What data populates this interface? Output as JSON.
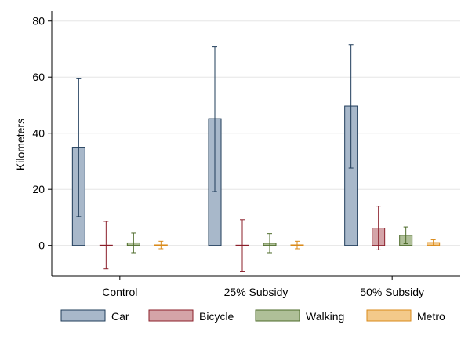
{
  "chart_data": {
    "type": "bar",
    "title": "",
    "xlabel": "",
    "ylabel": "Kilometers",
    "ylim": [
      -11,
      83
    ],
    "yticks": [
      0,
      20,
      40,
      60,
      80
    ],
    "grid": true,
    "legend_position": "bottom",
    "categories": [
      "Control",
      "25% Subsidy",
      "50% Subsidy"
    ],
    "series": [
      {
        "name": "Car",
        "fill": "#a8b8ca",
        "stroke": "#1f3c5a",
        "values": [
          35.0,
          45.2,
          49.7
        ],
        "err_low": [
          10.3,
          19.2,
          27.6
        ],
        "err_high": [
          59.4,
          70.8,
          71.6
        ]
      },
      {
        "name": "Bicycle",
        "fill": "#d4a4a8",
        "stroke": "#8b1f2a",
        "values": [
          0.1,
          0.1,
          6.2
        ],
        "err_low": [
          -8.4,
          -9.2,
          -1.6
        ],
        "err_high": [
          8.6,
          9.2,
          14.0
        ]
      },
      {
        "name": "Walking",
        "fill": "#afbf98",
        "stroke": "#4d6b2a",
        "values": [
          0.9,
          0.8,
          3.6
        ],
        "err_low": [
          -2.6,
          -2.6,
          0.6
        ],
        "err_high": [
          4.4,
          4.2,
          6.6
        ]
      },
      {
        "name": "Metro",
        "fill": "#f3c98a",
        "stroke": "#d98a1a",
        "values": [
          0.2,
          0.2,
          1.0
        ],
        "err_low": [
          -1.2,
          -1.2,
          0.0
        ],
        "err_high": [
          1.5,
          1.5,
          2.0
        ]
      }
    ]
  }
}
